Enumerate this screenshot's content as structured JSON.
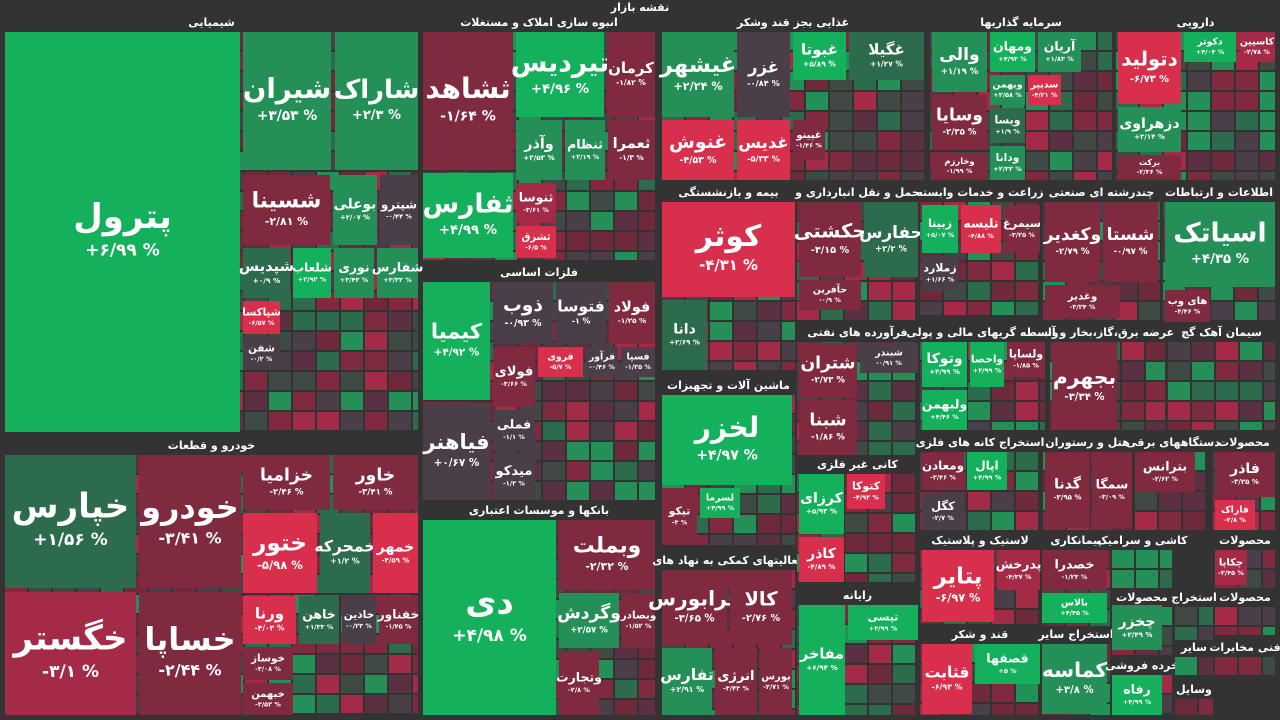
{
  "title": "نقشه بازار",
  "sectors": [
    {
      "name": "شیمیایی",
      "tiles": [
        {
          "name": "پترول",
          "change": "+۶/۹۹ %"
        },
        {
          "name": "شیران",
          "change": "+۳/۵۳ %"
        },
        {
          "name": "شاراک",
          "change": "+۲/۳ %"
        },
        {
          "name": "شسینا",
          "change": "-۲/۸۱ %"
        },
        {
          "name": "بوعلی",
          "change": "+۲/۰۷ %"
        },
        {
          "name": "شپترو",
          "change": "-۰/۴۴ %"
        },
        {
          "name": "شپدیس",
          "change": "+۰/۹ %"
        },
        {
          "name": "شلعاب",
          "change": "+۲/۹۲ %"
        },
        {
          "name": "نوری",
          "change": "+۳/۴۳ %"
        },
        {
          "name": "شفارس",
          "change": "+۳/۳۲ %"
        },
        {
          "name": "شپاکسا",
          "change": "-۶/۵۷ %"
        },
        {
          "name": "شفن",
          "change": "-۰/۲ %"
        }
      ]
    },
    {
      "name": "خودرو و قطعات",
      "tiles": [
        {
          "name": "خپارس",
          "change": "+۱/۵۶ %"
        },
        {
          "name": "خودرو",
          "change": "-۳/۴۱ %"
        },
        {
          "name": "خگستر",
          "change": "-۳/۱ %"
        },
        {
          "name": "خساپا",
          "change": "-۲/۴۴ %"
        },
        {
          "name": "خزامیا",
          "change": "-۲/۴۶ %"
        },
        {
          "name": "خاور",
          "change": "-۳/۴۱ %"
        },
        {
          "name": "ختور",
          "change": "-۵/۹۸ %"
        },
        {
          "name": "خمحرکه",
          "change": "+۱/۲ %"
        },
        {
          "name": "خمهر",
          "change": "-۴/۵۹ %"
        },
        {
          "name": "ورنا",
          "change": "-۴/۰۳ %"
        },
        {
          "name": "خاهن",
          "change": "+۱/۳۳ %"
        },
        {
          "name": "خاذین",
          "change": "-۰/۲۳ %"
        },
        {
          "name": "خفناور",
          "change": "-۱/۴۵ %"
        },
        {
          "name": "خوساز",
          "change": "-۳/۰۸ %"
        },
        {
          "name": "خبهمن",
          "change": "-۳/۵۲ %"
        }
      ]
    },
    {
      "name": "انبوه سازی املاک و مستغلات",
      "tiles": [
        {
          "name": "ثشاهد",
          "change": "-۱/۶۴ %"
        },
        {
          "name": "ثفارس",
          "change": "+۴/۹۹ %"
        },
        {
          "name": "تیردیس",
          "change": "+۴/۹۶ %"
        },
        {
          "name": "کرمان",
          "change": "-۱/۸۲ %"
        },
        {
          "name": "وآذر",
          "change": "+۳/۵۳ %"
        },
        {
          "name": "ثنظام",
          "change": "+۲/۱۹ %"
        },
        {
          "name": "ثعمرا",
          "change": "-۱/۳ %"
        },
        {
          "name": "ثنوسا",
          "change": "-۳/۶۱ %"
        },
        {
          "name": "ثشرق",
          "change": "-۶/۵ %"
        }
      ]
    },
    {
      "name": "فلزات اساسی",
      "tiles": [
        {
          "name": "کیمیا",
          "change": "+۴/۹۲ %"
        },
        {
          "name": "فیاهنر",
          "change": "+۰/۶۷ %"
        },
        {
          "name": "ذوب",
          "change": "-۰/۹۳ %"
        },
        {
          "name": "فتوسا",
          "change": "-۱ %"
        },
        {
          "name": "فولاد",
          "change": "-۱/۲۵ %"
        },
        {
          "name": "فولای",
          "change": "-۳/۶۶ %"
        },
        {
          "name": "فروی",
          "change": "-۵/۷ %"
        },
        {
          "name": "فرآور",
          "change": "-۰/۴۶ %"
        },
        {
          "name": "فسپا",
          "change": "-۱/۲۵ %"
        },
        {
          "name": "فملی",
          "change": "-۱/۱ %"
        },
        {
          "name": "میدکو",
          "change": "-۱/۳ %"
        }
      ]
    },
    {
      "name": "بانکها و موسسات اعتباری",
      "tiles": [
        {
          "name": "دی",
          "change": "+۴/۹۸ %"
        },
        {
          "name": "وبملت",
          "change": "-۲/۳۲ %"
        },
        {
          "name": "وگردش",
          "change": "+۲/۵۷ %"
        },
        {
          "name": "وبصادر",
          "change": "-۱/۵۲ %"
        },
        {
          "name": "وتجارت",
          "change": "-۲/۸ %"
        }
      ]
    },
    {
      "name": "غذایی بجز قند وشکر",
      "tiles": [
        {
          "name": "غیشهر",
          "change": "+۲/۲۴ %"
        },
        {
          "name": "غزر",
          "change": "-۰/۸۴ %"
        },
        {
          "name": "غبوتا",
          "change": "+۵/۸۹ %"
        },
        {
          "name": "غگیلا",
          "change": "+۱/۲۷ %"
        },
        {
          "name": "غنوش",
          "change": "-۴/۵۳ %"
        },
        {
          "name": "غدیس",
          "change": "-۵/۳۳ %"
        },
        {
          "name": "غپینو",
          "change": "-۱/۴۶ %"
        }
      ]
    },
    {
      "name": "بیمه و بازنشستگی",
      "tiles": [
        {
          "name": "کوثر",
          "change": "-۴/۳۱ %"
        },
        {
          "name": "دانا",
          "change": "+۲/۶۹ %"
        }
      ]
    },
    {
      "name": "ماشین آلات و تجهیزات",
      "tiles": [
        {
          "name": "لخزر",
          "change": "+۴/۹۷ %"
        },
        {
          "name": "تیکو",
          "change": "-۳ %"
        },
        {
          "name": "لسرما",
          "change": "+۴/۹۹ %"
        }
      ]
    },
    {
      "name": "فعالیتهای کمکی به نهاد های",
      "tiles": [
        {
          "name": "فرابورس",
          "change": "-۳/۶۵ %"
        },
        {
          "name": "کالا",
          "change": "-۲/۷۶ %"
        },
        {
          "name": "تفارس",
          "change": "+۲/۹۱ %"
        },
        {
          "name": "انرژی",
          "change": "-۳/۴۳ %"
        },
        {
          "name": "بورس",
          "change": "-۲/۷۱ %"
        }
      ]
    },
    {
      "name": "حمل و نقل انبارداری و",
      "tiles": [
        {
          "name": "حکشتی",
          "change": "-۳/۱۵ %"
        },
        {
          "name": "حفارس",
          "change": "+۲/۲ %"
        },
        {
          "name": "حآفرین",
          "change": "-۰/۹ %"
        }
      ]
    },
    {
      "name": "فرآورده های نفتی",
      "tiles": [
        {
          "name": "شتران",
          "change": "-۲/۷۳ %"
        },
        {
          "name": "شبندر",
          "change": "-۰/۹۱ %"
        },
        {
          "name": "شبنا",
          "change": "-۱/۸۶ %"
        }
      ]
    },
    {
      "name": "کانی غیر فلزی",
      "tiles": [
        {
          "name": "کرزای",
          "change": "+۵/۹۳ %"
        },
        {
          "name": "کتوکا",
          "change": "-۴/۹۲ %"
        },
        {
          "name": "کاذر",
          "change": "-۴/۸۹ %"
        }
      ]
    },
    {
      "name": "رایانه",
      "tiles": [
        {
          "name": "مفاخر",
          "change": "+۶/۹۴ %"
        },
        {
          "name": "تپسی",
          "change": "+۴/۹۹ %"
        }
      ]
    },
    {
      "name": "سرمایه گذاریها",
      "tiles": [
        {
          "name": "والی",
          "change": "+۱/۱۹ %"
        },
        {
          "name": "ومهان",
          "change": "+۴/۹۳ %"
        },
        {
          "name": "آریان",
          "change": "+۱/۸۳ %"
        },
        {
          "name": "وسایا",
          "change": "-۲/۳۵ %"
        },
        {
          "name": "وبهمن",
          "change": "+۲/۵۸ %"
        },
        {
          "name": "سدبیر",
          "change": "-۴/۲۱ %"
        },
        {
          "name": "ویسا",
          "change": "+۱/۹ %"
        },
        {
          "name": "وخارزم",
          "change": "-۱/۹۹ %"
        },
        {
          "name": "ودانا",
          "change": "+۲/۳۲ %"
        }
      ]
    },
    {
      "name": "زراعت و خدمات وابسته",
      "tiles": [
        {
          "name": "زبینا",
          "change": "+۵/۰۷ %"
        },
        {
          "name": "تلیسه",
          "change": "-۴/۸۸ %"
        },
        {
          "name": "سیمرغ",
          "change": "-۳/۲۵ %"
        },
        {
          "name": "زملارد",
          "change": "+۱/۶۶ %"
        }
      ]
    },
    {
      "name": "چندرشته ای صنعتی",
      "tiles": [
        {
          "name": "وکغدیر",
          "change": "-۲/۷۹ %"
        },
        {
          "name": "شستا",
          "change": "-۰/۹۷ %"
        },
        {
          "name": "وغدیر",
          "change": "-۳/۲۴ %"
        }
      ]
    },
    {
      "name": "دارویی",
      "tiles": [
        {
          "name": "دتولید",
          "change": "-۶/۷۳ %"
        },
        {
          "name": "دکوثر",
          "change": "+۴/۰۴ %"
        },
        {
          "name": "کاسپین",
          "change": "-۲/۷۸ %"
        },
        {
          "name": "دزهراوی",
          "change": "+۳/۱۴ %"
        },
        {
          "name": "برکت",
          "change": "-۲/۳۶ %"
        }
      ]
    },
    {
      "name": "اطلاعات و ارتباطات",
      "tiles": [
        {
          "name": "اسیاتک",
          "change": "+۴/۳۵ %"
        },
        {
          "name": "های وب",
          "change": "-۴/۴۶ %"
        }
      ]
    },
    {
      "name": "واسطه گریهای مالی و پولی",
      "tiles": [
        {
          "name": "وتوکا",
          "change": "+۴/۹۹ %"
        },
        {
          "name": "واحصا",
          "change": "+۴/۹۹ %"
        },
        {
          "name": "ولساپا",
          "change": "-۱/۸۵ %"
        },
        {
          "name": "ولبهمن",
          "change": "+۴/۴۶ %"
        }
      ]
    },
    {
      "name": "عرضه برق،گاز،بخار و آب",
      "tiles": [
        {
          "name": "بجهرم",
          "change": "-۳/۳۴ %"
        }
      ]
    },
    {
      "name": "سیمان آهک گچ",
      "tiles": []
    },
    {
      "name": "استخراج کانه های فلزی",
      "tiles": [
        {
          "name": "ومعادن",
          "change": "-۲/۴۶ %"
        },
        {
          "name": "اپال",
          "change": "+۴/۹۹ %"
        },
        {
          "name": "کگل",
          "change": "-۲/۷ %"
        }
      ]
    },
    {
      "name": "هتل و رستوران",
      "tiles": [
        {
          "name": "گدنا",
          "change": "-۳/۹۵ %"
        },
        {
          "name": "سمگا",
          "change": "-۳/۰۹ %"
        }
      ]
    },
    {
      "name": "دستگاههای برقی",
      "tiles": [
        {
          "name": "بترانس",
          "change": "-۲/۶۲ %"
        }
      ]
    },
    {
      "name": "محصولات",
      "tiles": [
        {
          "name": "فاذر",
          "change": "-۳/۲۵ %"
        },
        {
          "name": "فاراک",
          "change": "-۲/۸ %"
        }
      ]
    },
    {
      "name": "لاستیک و پلاستیک",
      "tiles": [
        {
          "name": "پتایر",
          "change": "-۶/۹۷ %"
        },
        {
          "name": "پدرخش",
          "change": "-۴/۳۷ %"
        }
      ]
    },
    {
      "name": "قند و شکر",
      "tiles": [
        {
          "name": "قثابت",
          "change": "-۶/۹۳ %"
        },
        {
          "name": "قصفها",
          "change": "+۵ %"
        }
      ]
    },
    {
      "name": "پیمانکاری",
      "tiles": [
        {
          "name": "خصدرا",
          "change": "-۱/۲۳ %"
        },
        {
          "name": "بالاس",
          "change": "+۴/۴۵ %"
        }
      ]
    },
    {
      "name": "استخراج سایر",
      "tiles": [
        {
          "name": "کماسه",
          "change": "+۳/۸ %"
        }
      ]
    },
    {
      "name": "کاشی و سرامیک",
      "tiles": []
    },
    {
      "name": "محصولات",
      "tiles": [
        {
          "name": "چخزر",
          "change": "+۲/۴۹ %"
        }
      ]
    },
    {
      "name": "خرده فروشی",
      "tiles": [
        {
          "name": "رفاه",
          "change": "+۴/۹۹ %"
        }
      ]
    },
    {
      "name": "استخراج",
      "tiles": []
    },
    {
      "name": "سایر",
      "tiles": []
    },
    {
      "name": "وسایل",
      "tiles": []
    },
    {
      "name": "محصولات",
      "tiles": [
        {
          "name": "چکاپا",
          "change": "-۲/۴۵ %"
        }
      ]
    },
    {
      "name": "محصولات",
      "tiles": []
    },
    {
      "name": "فنی مخابرات",
      "tiles": []
    }
  ]
}
